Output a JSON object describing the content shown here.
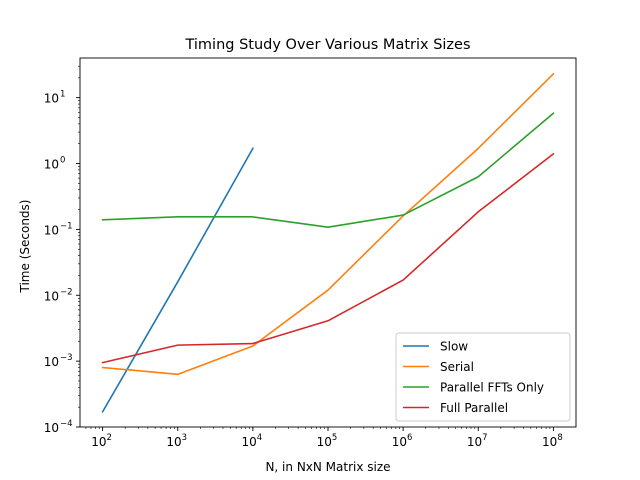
{
  "chart_data": {
    "type": "line",
    "title": "Timing Study Over Various Matrix Sizes",
    "xlabel": "N, in NxN Matrix size",
    "ylabel": "Time (Seconds)",
    "xscale": "log",
    "yscale": "log",
    "xlim": [
      50,
      200000000
    ],
    "ylim": [
      0.0001,
      40
    ],
    "x_ticks": [
      {
        "value": 100,
        "base": "10",
        "exp": "2"
      },
      {
        "value": 1000,
        "base": "10",
        "exp": "3"
      },
      {
        "value": 10000,
        "base": "10",
        "exp": "4"
      },
      {
        "value": 100000,
        "base": "10",
        "exp": "5"
      },
      {
        "value": 1000000,
        "base": "10",
        "exp": "6"
      },
      {
        "value": 10000000,
        "base": "10",
        "exp": "7"
      },
      {
        "value": 100000000,
        "base": "10",
        "exp": "8"
      }
    ],
    "y_ticks": [
      {
        "value": 0.0001,
        "base": "10",
        "exp": "−4"
      },
      {
        "value": 0.001,
        "base": "10",
        "exp": "−3"
      },
      {
        "value": 0.01,
        "base": "10",
        "exp": "−2"
      },
      {
        "value": 0.1,
        "base": "10",
        "exp": "−1"
      },
      {
        "value": 1,
        "base": "10",
        "exp": "0"
      },
      {
        "value": 10,
        "base": "10",
        "exp": "1"
      }
    ],
    "legend_position": "lower-right",
    "grid": false,
    "series": [
      {
        "name": "Slow",
        "color": "#1f77b4",
        "x": [
          100,
          1000,
          10000
        ],
        "y": [
          0.00017,
          0.016,
          1.7
        ]
      },
      {
        "name": "Serial",
        "color": "#ff7f0e",
        "x": [
          100,
          1000,
          10000,
          100000,
          1000000,
          10000000,
          100000000
        ],
        "y": [
          0.0008,
          0.00063,
          0.0017,
          0.012,
          0.16,
          1.7,
          23
        ]
      },
      {
        "name": "Parallel FFTs Only",
        "color": "#2ca02c",
        "x": [
          100,
          1000,
          10000,
          100000,
          1000000,
          10000000,
          100000000
        ],
        "y": [
          0.14,
          0.155,
          0.155,
          0.108,
          0.165,
          0.63,
          5.8
        ]
      },
      {
        "name": "Full Parallel",
        "color": "#d62728",
        "x": [
          100,
          1000,
          10000,
          100000,
          1000000,
          10000000,
          100000000
        ],
        "y": [
          0.00095,
          0.00175,
          0.00185,
          0.0041,
          0.017,
          0.185,
          1.4
        ]
      }
    ]
  }
}
